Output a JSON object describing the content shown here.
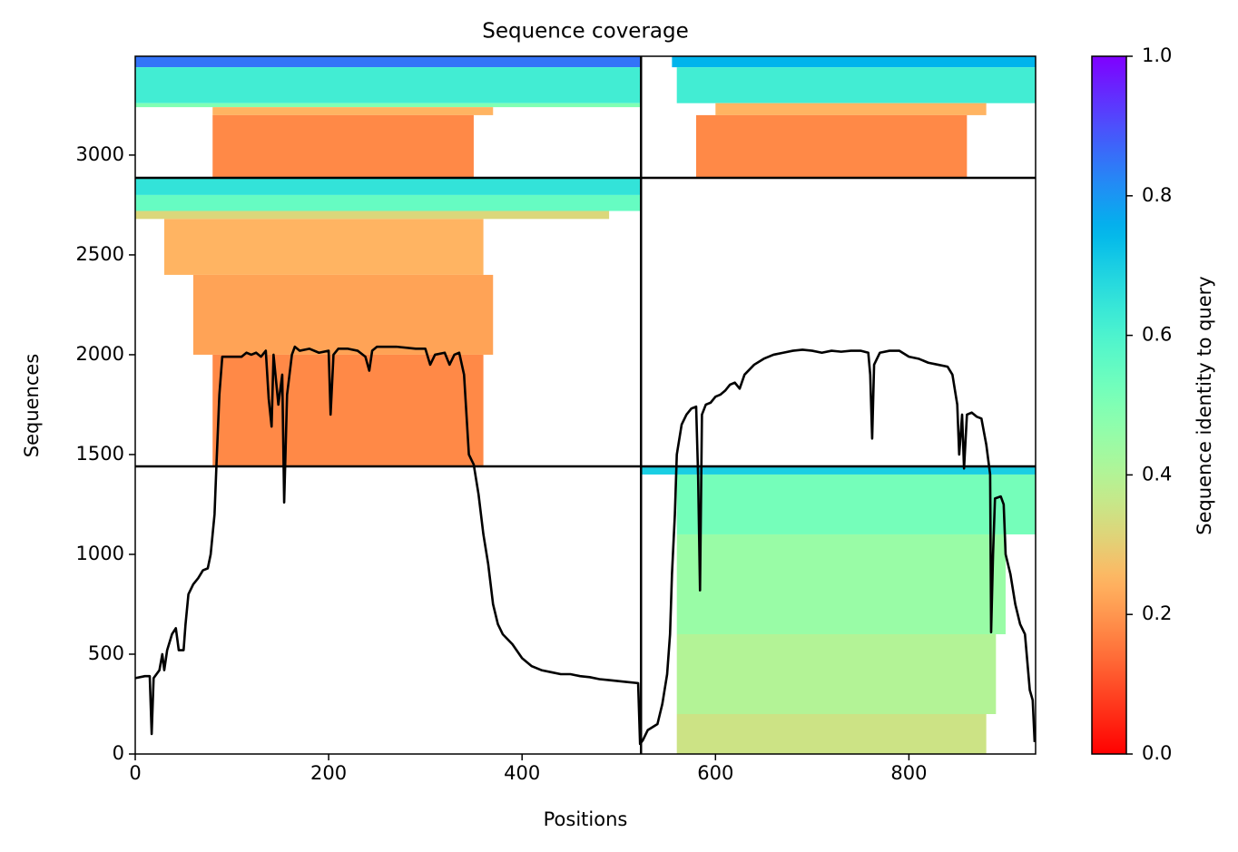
{
  "chart_data": {
    "type": "heatmap",
    "title": "Sequence coverage",
    "x_label": "Positions",
    "y_label": "Sequences",
    "colorbar_label": "Sequence identity to query",
    "colormap": "rainbow_r",
    "xlim": [
      0,
      931
    ],
    "ylim": [
      0,
      3495
    ],
    "xticks": [
      0,
      200,
      400,
      600,
      800
    ],
    "yticks": [
      0,
      500,
      1000,
      1500,
      2000,
      2500,
      3000
    ],
    "clim": [
      0,
      1
    ],
    "cticks": [
      {
        "value": 0,
        "label": "0.0"
      },
      0.2,
      0.4,
      0.6,
      0.8,
      {
        "value": 1,
        "label": "1.0"
      }
    ],
    "dividers": {
      "x": [
        523
      ],
      "y": [
        1441,
        2886
      ],
      "color": "#000000"
    },
    "blocks": [
      {
        "x": [
          0,
          523
        ],
        "y": [
          3440,
          3495
        ],
        "identity": 0.85
      },
      {
        "x": [
          0,
          523
        ],
        "y": [
          3260,
          3440
        ],
        "identity": 0.62
      },
      {
        "x": [
          0,
          523
        ],
        "y": [
          3240,
          3260
        ],
        "identity": 0.5
      },
      {
        "x": [
          80,
          370
        ],
        "y": [
          3200,
          3240
        ],
        "identity": 0.25
      },
      {
        "x": [
          80,
          350
        ],
        "y": [
          2886,
          3200
        ],
        "identity": 0.18
      },
      {
        "x": [
          555,
          931
        ],
        "y": [
          3440,
          3495
        ],
        "identity": 0.75
      },
      {
        "x": [
          560,
          931
        ],
        "y": [
          3260,
          3440
        ],
        "identity": 0.62
      },
      {
        "x": [
          600,
          880
        ],
        "y": [
          3200,
          3260
        ],
        "identity": 0.25
      },
      {
        "x": [
          580,
          860
        ],
        "y": [
          2886,
          3200
        ],
        "identity": 0.18
      },
      {
        "x": [
          0,
          523
        ],
        "y": [
          2800,
          2886
        ],
        "identity": 0.65
      },
      {
        "x": [
          0,
          523
        ],
        "y": [
          2720,
          2800
        ],
        "identity": 0.55
      },
      {
        "x": [
          0,
          490
        ],
        "y": [
          2680,
          2720
        ],
        "identity": 0.32
      },
      {
        "x": [
          30,
          360
        ],
        "y": [
          2400,
          2680
        ],
        "identity": 0.25
      },
      {
        "x": [
          60,
          370
        ],
        "y": [
          2000,
          2400
        ],
        "identity": 0.22
      },
      {
        "x": [
          80,
          360
        ],
        "y": [
          1441,
          2000
        ],
        "identity": 0.18
      },
      {
        "x": [
          523,
          931
        ],
        "y": [
          1400,
          1441
        ],
        "identity": 0.7
      },
      {
        "x": [
          560,
          931
        ],
        "y": [
          1100,
          1400
        ],
        "identity": 0.52
      },
      {
        "x": [
          560,
          900
        ],
        "y": [
          600,
          1100
        ],
        "identity": 0.45
      },
      {
        "x": [
          560,
          890
        ],
        "y": [
          200,
          600
        ],
        "identity": 0.4
      },
      {
        "x": [
          560,
          880
        ],
        "y": [
          0,
          200
        ],
        "identity": 0.35
      }
    ],
    "line": {
      "color": "#000000",
      "x": [
        0,
        10,
        15,
        17,
        19,
        22,
        25,
        28,
        30,
        33,
        38,
        42,
        45,
        50,
        52,
        55,
        60,
        65,
        70,
        75,
        78,
        80,
        82,
        84,
        87,
        90,
        100,
        110,
        115,
        120,
        125,
        130,
        135,
        138,
        141,
        143,
        148,
        152,
        154,
        157,
        162,
        165,
        170,
        180,
        190,
        200,
        202,
        205,
        210,
        220,
        230,
        238,
        242,
        245,
        250,
        270,
        290,
        300,
        305,
        310,
        320,
        325,
        330,
        335,
        340,
        345,
        350,
        355,
        360,
        365,
        370,
        375,
        380,
        390,
        400,
        410,
        420,
        430,
        440,
        450,
        460,
        470,
        480,
        490,
        500,
        510,
        520,
        522,
        525,
        530,
        540,
        545,
        550,
        553,
        555,
        558,
        560,
        565,
        570,
        575,
        580,
        582,
        584,
        586,
        590,
        595,
        600,
        605,
        610,
        615,
        620,
        625,
        630,
        640,
        650,
        660,
        670,
        680,
        690,
        700,
        710,
        720,
        730,
        740,
        750,
        758,
        760,
        762,
        764,
        770,
        780,
        790,
        800,
        810,
        820,
        830,
        840,
        845,
        850,
        852,
        855,
        857,
        860,
        865,
        870,
        875,
        880,
        884,
        885,
        887,
        889,
        895,
        898,
        900,
        905,
        910,
        915,
        920,
        925,
        928,
        930
      ],
      "values": [
        380,
        390,
        390,
        100,
        380,
        400,
        420,
        500,
        420,
        520,
        600,
        630,
        520,
        520,
        650,
        800,
        850,
        880,
        920,
        930,
        1000,
        1100,
        1200,
        1450,
        1800,
        1990,
        1990,
        1990,
        2010,
        2000,
        2010,
        1990,
        2020,
        1780,
        1640,
        2000,
        1750,
        1900,
        1260,
        1800,
        2000,
        2040,
        2020,
        2030,
        2010,
        2020,
        1700,
        2000,
        2030,
        2030,
        2020,
        1990,
        1920,
        2020,
        2040,
        2040,
        2030,
        2030,
        1950,
        2000,
        2010,
        1950,
        2000,
        2010,
        1900,
        1500,
        1450,
        1300,
        1100,
        950,
        750,
        650,
        600,
        550,
        480,
        440,
        420,
        410,
        400,
        400,
        390,
        385,
        375,
        370,
        365,
        360,
        355,
        50,
        70,
        120,
        150,
        250,
        400,
        600,
        900,
        1200,
        1500,
        1650,
        1700,
        1730,
        1740,
        1400,
        820,
        1700,
        1750,
        1760,
        1790,
        1800,
        1820,
        1850,
        1860,
        1830,
        1900,
        1950,
        1980,
        2000,
        2010,
        2020,
        2025,
        2020,
        2010,
        2020,
        2015,
        2020,
        2020,
        2010,
        1900,
        1580,
        1950,
        2010,
        2020,
        2020,
        1990,
        1980,
        1960,
        1950,
        1940,
        1900,
        1750,
        1500,
        1700,
        1430,
        1700,
        1710,
        1690,
        1680,
        1550,
        1400,
        610,
        1000,
        1280,
        1290,
        1250,
        1000,
        900,
        750,
        650,
        600,
        320,
        270,
        60
      ]
    }
  }
}
